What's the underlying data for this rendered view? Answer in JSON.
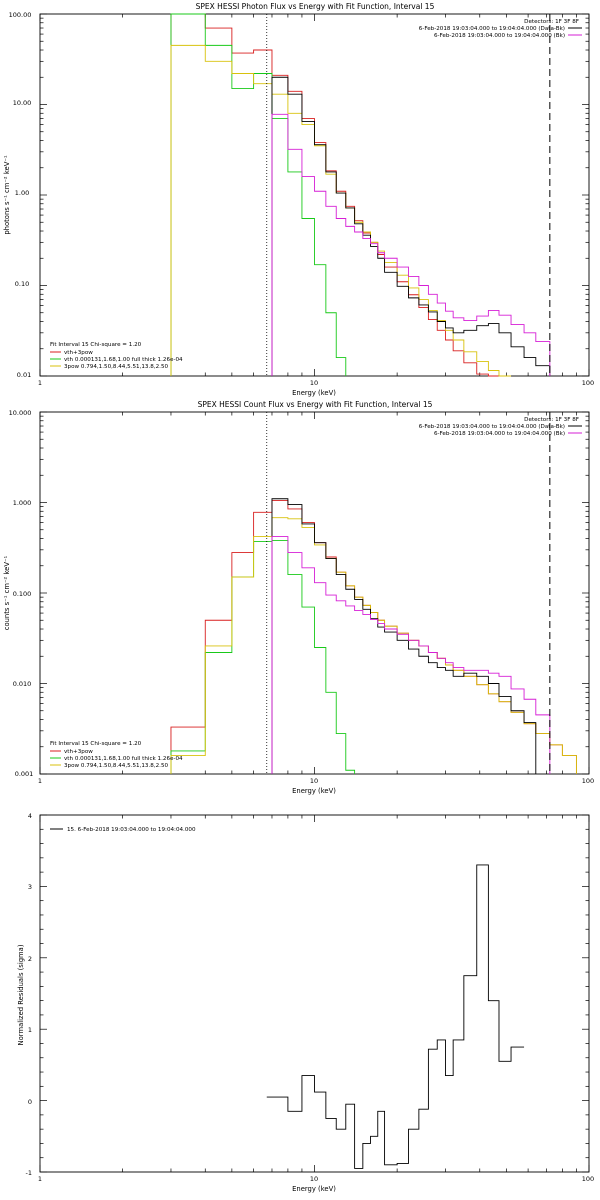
{
  "colors": {
    "data": "#000000",
    "total": "#d81f1f",
    "vth": "#19c919",
    "3pow": "#d8c20c",
    "background": "#d61fd6"
  },
  "chart_data": [
    {
      "type": "line",
      "title": "SPEX HESSI Photon Flux vs Energy with Fit Function, Interval 15",
      "xlabel": "Energy (keV)",
      "ylabel": "photons s⁻¹ cm⁻² keV⁻¹",
      "xlog": true,
      "ylog": true,
      "xlim": [
        1,
        100
      ],
      "ylim": [
        0.01,
        100
      ],
      "xticks": [
        1,
        10,
        100
      ],
      "xtick_labels": [
        "1",
        "10",
        "100"
      ],
      "yticks": [
        0.01,
        0.1,
        1,
        10,
        100
      ],
      "ytick_labels": [
        "0.01",
        "0.10",
        "1.00",
        "10.00",
        "100.00"
      ],
      "detectors": "Detectors: 1F 3F 8F",
      "legend_right": [
        "6-Feb-2018 19:03:04.000 to 19:04:04.000 (Data-Bk)",
        "6-Feb-2018 19:03:04.000 to 19:04:04.000 (Bk)"
      ],
      "legend_left": [
        "Fit Interval 15   Chi-square = 1.20",
        "vth+3pow",
        "vth 0.000131,1.68,1.00  full thick 1.26e-04",
        "3pow 0.794,1.50,8.44,5.51,13.8,2.50"
      ],
      "vlines": [
        6.7,
        72
      ],
      "bin_edges": [
        3.0,
        4.0,
        5.0,
        6.0,
        7.0,
        8.0,
        9.0,
        10.0,
        11.0,
        12.0,
        13.0,
        14.0,
        15.0,
        16.0,
        17.0,
        18.0,
        20.0,
        22.0,
        24.0,
        26.0,
        28.0,
        30.0,
        32.0,
        35.0,
        39.0,
        43.0,
        47.0,
        52.0,
        58.0,
        64.0,
        72.0,
        80.0
      ],
      "series": [
        {
          "name": "total",
          "color": "#d81f1f",
          "values": [
            100,
            70,
            37,
            40,
            21,
            14,
            7,
            3.8,
            1.85,
            1.1,
            0.75,
            0.52,
            0.38,
            0.3,
            0.22,
            0.16,
            0.11,
            0.079,
            0.057,
            0.042,
            0.032,
            0.025,
            0.019,
            0.014,
            0.0105,
            0.0082,
            null,
            null,
            null,
            null,
            null
          ]
        },
        {
          "name": "vth",
          "color": "#19c919",
          "values": [
            150,
            45,
            15,
            22,
            7,
            1.8,
            0.55,
            0.17,
            0.05,
            0.016,
            null,
            null,
            null,
            null,
            null,
            null,
            null,
            null,
            null,
            null,
            null,
            null,
            null,
            null,
            null,
            null,
            null,
            null,
            null,
            null,
            null
          ]
        },
        {
          "name": "3pow",
          "color": "#d8c20c",
          "values": [
            45,
            30,
            22,
            17,
            13,
            8,
            6,
            3.5,
            1.7,
            1.05,
            0.72,
            0.5,
            0.39,
            0.3,
            0.24,
            0.18,
            0.13,
            0.094,
            0.07,
            0.053,
            0.041,
            0.032,
            0.025,
            0.0185,
            0.0145,
            0.0115,
            0.0092,
            null,
            null,
            null,
            null
          ]
        },
        {
          "name": "Data-Bk",
          "color": "#000000",
          "values": [
            null,
            null,
            null,
            null,
            20,
            13,
            6.5,
            3.6,
            1.8,
            1.05,
            0.72,
            0.48,
            0.36,
            0.27,
            0.2,
            0.14,
            0.098,
            0.073,
            0.061,
            0.051,
            0.04,
            0.034,
            0.03,
            0.032,
            0.036,
            0.038,
            0.03,
            0.021,
            0.016,
            0.013,
            null
          ]
        },
        {
          "name": "Bk",
          "color": "#d61fd6",
          "values": [
            null,
            null,
            null,
            null,
            7.8,
            3.2,
            1.6,
            1.1,
            0.75,
            0.55,
            0.45,
            0.39,
            0.33,
            0.29,
            0.23,
            0.2,
            0.16,
            0.126,
            0.1,
            0.08,
            0.064,
            0.052,
            0.044,
            0.041,
            0.046,
            0.053,
            0.047,
            0.037,
            0.03,
            0.024,
            null
          ]
        }
      ]
    },
    {
      "type": "line",
      "title": "SPEX HESSI Count Flux vs Energy with Fit Function, Interval 15",
      "xlabel": "Energy (keV)",
      "ylabel": "counts s⁻¹ cm⁻² keV⁻¹",
      "xlog": true,
      "ylog": true,
      "xlim": [
        1,
        100
      ],
      "ylim": [
        0.001,
        10
      ],
      "xticks": [
        1,
        10,
        100
      ],
      "xtick_labels": [
        "1",
        "10",
        "100"
      ],
      "yticks": [
        0.001,
        0.01,
        0.1,
        1,
        10
      ],
      "ytick_labels": [
        "0.001",
        "0.010",
        "0.100",
        "1.000",
        "10.000"
      ],
      "detectors": "Detectors: 1F 3F 8F",
      "legend_right": [
        "6-Feb-2018 19:03:04.000 to 19:04:04.000 (Data-Bk)",
        "6-Feb-2018 19:03:04.000 to 19:04:04.000 (Bk)"
      ],
      "legend_left": [
        "Fit Interval 15   Chi-square = 1.20",
        "vth+3pow",
        "vth 0.000131,1.68,1.00  full thick 1.26e-04",
        "3pow 0.794,1.50,8.44,5.51,13.8,2.50"
      ],
      "vlines": [
        6.7,
        72
      ],
      "bin_edges": [
        3.0,
        4.0,
        5.0,
        6.0,
        7.0,
        8.0,
        9.0,
        10.0,
        11.0,
        12.0,
        13.0,
        14.0,
        15.0,
        16.0,
        17.0,
        18.0,
        20.0,
        22.0,
        24.0,
        26.0,
        28.0,
        30.0,
        32.0,
        35.0,
        39.0,
        43.0,
        47.0,
        52.0,
        58.0,
        64.0,
        72.0,
        80.0,
        90.0
      ],
      "series": [
        {
          "name": "total",
          "color": "#d81f1f",
          "values": [
            0.0033,
            0.05,
            0.28,
            0.78,
            1.05,
            0.85,
            0.6,
            0.36,
            0.25,
            0.17,
            0.12,
            0.09,
            0.073,
            0.061,
            0.05,
            0.043,
            0.036,
            0.03,
            0.026,
            0.022,
            0.019,
            0.016,
            0.014,
            0.012,
            0.0097,
            0.0077,
            0.0063,
            0.0048,
            0.0036,
            0.0028,
            0.0021,
            0.0016
          ]
        },
        {
          "name": "vth",
          "color": "#19c919",
          "values": [
            0.0018,
            0.022,
            0.15,
            0.37,
            0.38,
            0.16,
            0.07,
            0.025,
            0.008,
            0.0028,
            0.0011,
            null,
            null,
            null,
            null,
            null,
            null,
            null,
            null,
            null,
            null,
            null,
            null,
            null,
            null,
            null,
            null,
            null,
            null,
            null,
            null,
            null
          ]
        },
        {
          "name": "3pow",
          "color": "#d8c20c",
          "values": [
            0.0016,
            0.026,
            0.15,
            0.42,
            0.68,
            0.66,
            0.53,
            0.34,
            0.24,
            0.17,
            0.12,
            0.09,
            0.073,
            0.061,
            0.05,
            0.043,
            0.036,
            0.03,
            0.026,
            0.022,
            0.019,
            0.016,
            0.014,
            0.012,
            0.0097,
            0.0077,
            0.0063,
            0.0048,
            0.0036,
            0.0028,
            0.0021,
            0.0016
          ]
        },
        {
          "name": "Data-Bk",
          "color": "#000000",
          "values": [
            null,
            null,
            null,
            null,
            1.1,
            0.95,
            0.58,
            0.36,
            0.24,
            0.16,
            0.11,
            0.085,
            0.066,
            0.052,
            0.042,
            0.037,
            0.03,
            0.024,
            0.02,
            0.017,
            0.015,
            0.014,
            0.012,
            0.013,
            0.012,
            0.01,
            0.0072,
            0.005,
            0.0037,
            null,
            null,
            null
          ]
        },
        {
          "name": "Bk",
          "color": "#d61fd6",
          "values": [
            null,
            null,
            null,
            null,
            0.42,
            0.28,
            0.19,
            0.13,
            0.095,
            0.082,
            0.072,
            0.064,
            0.058,
            0.051,
            0.046,
            0.04,
            0.035,
            0.03,
            0.026,
            0.022,
            0.019,
            0.017,
            0.015,
            0.014,
            0.014,
            0.013,
            0.012,
            0.0087,
            0.0067,
            0.0045,
            null,
            null
          ]
        }
      ]
    },
    {
      "type": "line",
      "title": "",
      "xlabel": "Energy (keV)",
      "ylabel": "Normalized Residuals (sigma)",
      "xlog": true,
      "ylog": false,
      "xlim": [
        1,
        100
      ],
      "ylim": [
        -1,
        4
      ],
      "xticks": [
        1,
        10,
        100
      ],
      "xtick_labels": [
        "1",
        "10",
        "100"
      ],
      "yticks": [
        -1,
        0,
        1,
        2,
        3,
        4
      ],
      "ytick_labels": [
        "-1",
        "0",
        "1",
        "2",
        "3",
        "4"
      ],
      "legend": "15.  6-Feb-2018 19:03:04.000 to 19:04:04.000",
      "bin_edges": [
        6.7,
        8.0,
        9.0,
        10.0,
        11.0,
        12.0,
        13.0,
        14.0,
        15.0,
        16.0,
        17.0,
        18.0,
        20.0,
        22.0,
        24.0,
        26.0,
        28.0,
        30.0,
        32.0,
        35.0,
        39.0,
        43.0,
        47.0,
        52.0,
        58.0,
        64.0,
        72.0
      ],
      "series": [
        {
          "name": "15.  6-Feb-2018 19:03:04.000 to 19:04:04.000",
          "color": "#000000",
          "values": [
            0.05,
            -0.15,
            0.35,
            0.12,
            -0.25,
            -0.4,
            -0.05,
            -0.95,
            -0.6,
            -0.5,
            -0.15,
            -0.9,
            -0.88,
            -0.4,
            -0.12,
            0.72,
            0.85,
            0.35,
            0.85,
            1.75,
            3.3,
            1.4,
            0.55,
            0.75,
            null,
            null
          ]
        }
      ]
    }
  ]
}
